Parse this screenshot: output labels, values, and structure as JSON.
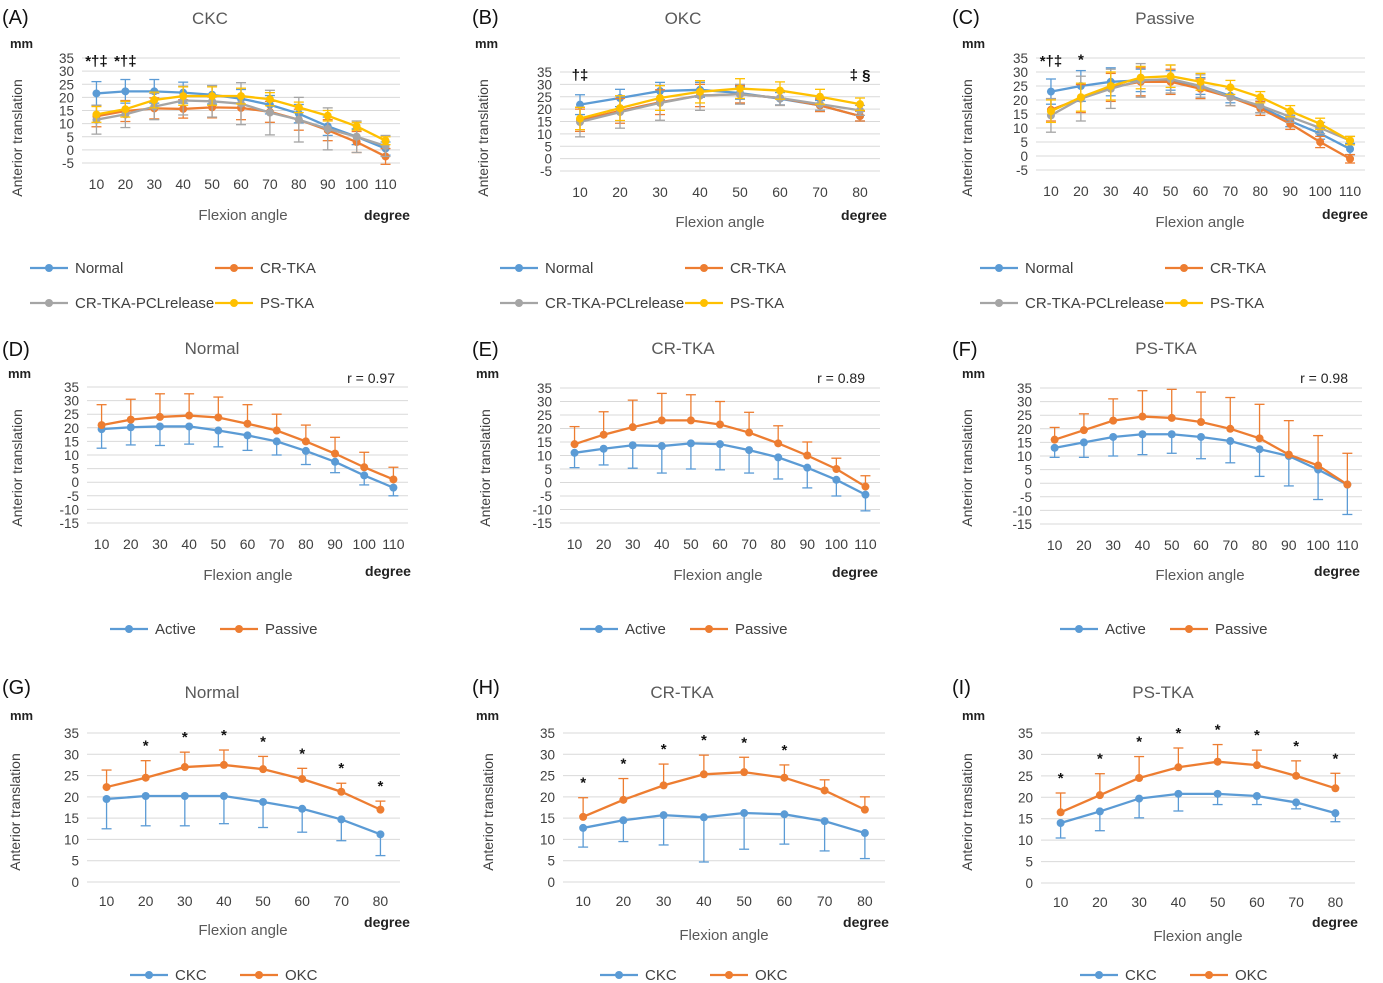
{
  "figure": {
    "series_colors": {
      "Normal": "#5B9BD5",
      "CR-TKA": "#ED7D31",
      "CR-TKA-PCLrelease": "#A5A5A5",
      "PS-TKA": "#FFC000",
      "Active": "#5B9BD5",
      "Passive": "#ED7D31",
      "CKC": "#5B9BD5",
      "OKC": "#ED7D31"
    },
    "gridline_color": "#D9D9D9"
  },
  "chart_data": [
    {
      "panel": "(A)",
      "title": "CKC",
      "type": "line",
      "ylabel": "Anterior translation",
      "yunit": "mm",
      "xlabel": "Flexion angle",
      "xunit": "degree",
      "x": [
        10,
        20,
        30,
        40,
        50,
        60,
        70,
        80,
        90,
        100,
        110
      ],
      "ylim": [
        -5,
        35
      ],
      "yticks": [
        35,
        30,
        25,
        20,
        15,
        10,
        5,
        0,
        -5
      ],
      "grid": true,
      "legend": "bottom",
      "annotation": "",
      "series": [
        {
          "name": "Normal",
          "values": [
            21.5,
            22.3,
            22.3,
            21.8,
            21,
            19.5,
            17.2,
            13.8,
            9,
            5,
            0.5
          ],
          "err": [
            4.5,
            4.5,
            4.5,
            4,
            3.5,
            3.5,
            3.5,
            3.5,
            3.5,
            3,
            2.5
          ]
        },
        {
          "name": "CR-TKA",
          "values": [
            12.8,
            14.8,
            15.8,
            15.6,
            16.2,
            16,
            14.5,
            11.5,
            7.5,
            3,
            -2.5
          ],
          "err": [
            4,
            4,
            4,
            3.5,
            4,
            4.5,
            4,
            4,
            4,
            4,
            3
          ]
        },
        {
          "name": "CR-TKA-PCLrelease",
          "values": [
            11.5,
            13.5,
            16.5,
            18.8,
            18.5,
            17.6,
            14.2,
            11.5,
            8,
            5,
            1.5
          ],
          "err": [
            5.5,
            5,
            5,
            5.5,
            6,
            8,
            8.5,
            8.5,
            8,
            6,
            4
          ]
        },
        {
          "name": "PS-TKA",
          "values": [
            13.5,
            15.5,
            19,
            20.5,
            20.5,
            20.5,
            19.3,
            16.2,
            13,
            9,
            3.5
          ],
          "err": [
            3,
            3,
            3,
            3.5,
            3.5,
            3,
            2.5,
            2,
            2,
            1.5,
            1.5
          ]
        }
      ],
      "markers": [
        {
          "x": 10,
          "text": "*†‡"
        },
        {
          "x": 20,
          "text": "*†‡"
        }
      ],
      "legend_entries": [
        "Normal",
        "CR-TKA",
        "CR-TKA-PCLrelease",
        "PS-TKA"
      ]
    },
    {
      "panel": "(B)",
      "title": "OKC",
      "type": "line",
      "ylabel": "Anterior translation",
      "yunit": "mm",
      "xlabel": "Flexion angle",
      "xunit": "degree",
      "x": [
        10,
        20,
        30,
        40,
        50,
        60,
        70,
        80
      ],
      "ylim": [
        -5,
        35
      ],
      "yticks": [
        35,
        30,
        25,
        20,
        15,
        10,
        5,
        0,
        -5
      ],
      "grid": true,
      "legend": "bottom",
      "annotation": "",
      "series": [
        {
          "name": "Normal",
          "values": [
            21.8,
            24.5,
            27.3,
            27.8,
            26.5,
            24.2,
            21.5,
            17.2
          ],
          "err": [
            4,
            3.5,
            3.5,
            3,
            2.5,
            2.5,
            2,
            2
          ]
        },
        {
          "name": "CR-TKA",
          "values": [
            15.5,
            19.3,
            22.8,
            25.5,
            26,
            24.5,
            21.5,
            17.2
          ],
          "err": [
            4.5,
            5,
            5,
            4.5,
            3.5,
            3,
            2.5,
            2
          ]
        },
        {
          "name": "CR-TKA-PCLrelease",
          "values": [
            14.8,
            18.8,
            22.5,
            25.5,
            26,
            24.5,
            22,
            19.5
          ],
          "err": [
            6,
            6.5,
            7,
            6,
            4,
            3,
            2.5,
            2
          ]
        },
        {
          "name": "PS-TKA",
          "values": [
            16.2,
            20.4,
            24.5,
            27,
            28.3,
            27.5,
            25,
            22
          ],
          "err": [
            4.5,
            5,
            5,
            4.5,
            4,
            3.5,
            3,
            2.5
          ]
        }
      ],
      "markers": [
        {
          "x": 10,
          "text": "†‡"
        },
        {
          "x": 80,
          "text": "‡ §"
        }
      ],
      "legend_entries": [
        "Normal",
        "CR-TKA",
        "CR-TKA-PCLrelease",
        "PS-TKA"
      ]
    },
    {
      "panel": "(C)",
      "title": "Passive",
      "type": "line",
      "ylabel": "Anterior translation",
      "yunit": "mm",
      "xlabel": "Flexion angle",
      "xunit": "degree",
      "x": [
        10,
        20,
        30,
        40,
        50,
        60,
        70,
        80,
        90,
        100,
        110
      ],
      "ylim": [
        -5,
        35
      ],
      "yticks": [
        35,
        30,
        25,
        20,
        15,
        10,
        5,
        0,
        -5
      ],
      "grid": true,
      "legend": "bottom",
      "annotation": "",
      "series": [
        {
          "name": "Normal",
          "values": [
            23,
            25,
            26.5,
            27,
            27,
            25,
            21.5,
            17.5,
            12.5,
            8,
            2.5
          ],
          "err": [
            4.5,
            5.5,
            5,
            4,
            3.5,
            3,
            2.5,
            2,
            2,
            2,
            2
          ]
        },
        {
          "name": "CR-TKA",
          "values": [
            16.5,
            20.5,
            24.5,
            26.5,
            26.5,
            24,
            21,
            17,
            11.5,
            5,
            -1
          ],
          "err": [
            4,
            5,
            5,
            5,
            4.5,
            3.5,
            3,
            2.5,
            2,
            2,
            1.5
          ]
        },
        {
          "name": "CR-TKA-PCLrelease",
          "values": [
            14.5,
            20.5,
            24,
            27,
            27.5,
            25,
            21,
            18,
            14,
            10,
            5.5
          ],
          "err": [
            6,
            8,
            7,
            6,
            5,
            4,
            3,
            2.5,
            2,
            2,
            1.5
          ]
        },
        {
          "name": "PS-TKA",
          "values": [
            16,
            21,
            25,
            28,
            28.5,
            26.5,
            24.5,
            21,
            16,
            11.5,
            5.5
          ],
          "err": [
            4,
            5,
            5,
            4,
            4,
            3,
            2.5,
            2,
            2,
            2,
            1.5
          ]
        }
      ],
      "markers": [
        {
          "x": 10,
          "text": "*†‡"
        },
        {
          "x": 20,
          "text": "*"
        }
      ],
      "legend_entries": [
        "Normal",
        "CR-TKA",
        "CR-TKA-PCLrelease",
        "PS-TKA"
      ]
    },
    {
      "panel": "(D)",
      "title": "Normal",
      "type": "line",
      "ylabel": "Anterior translation",
      "yunit": "mm",
      "xlabel": "Flexion angle",
      "xunit": "degree",
      "x": [
        10,
        20,
        30,
        40,
        50,
        60,
        70,
        80,
        90,
        100,
        110
      ],
      "ylim": [
        -15,
        35
      ],
      "yticks": [
        35,
        30,
        25,
        20,
        15,
        10,
        5,
        0,
        -5,
        -10,
        -15
      ],
      "grid": true,
      "legend": "bottom",
      "annotation": "r = 0.97",
      "series": [
        {
          "name": "Active",
          "values": [
            19.5,
            20.2,
            20.5,
            20.5,
            19,
            17.2,
            15,
            11.5,
            7.5,
            2.5,
            -2
          ],
          "err": [
            7,
            6.5,
            7,
            6.5,
            6,
            5.5,
            5,
            5,
            4,
            3.5,
            3
          ]
        },
        {
          "name": "Passive",
          "values": [
            21,
            23,
            24,
            24.5,
            23.8,
            21.5,
            19,
            15,
            10.5,
            5.5,
            1
          ],
          "err": [
            7.5,
            7.5,
            8.5,
            8,
            7.5,
            7,
            6,
            6,
            6,
            5.5,
            4.5
          ]
        }
      ],
      "markers": [],
      "legend_entries": [
        "Active",
        "Passive"
      ]
    },
    {
      "panel": "(E)",
      "title": "CR-TKA",
      "type": "line",
      "ylabel": "Anterior translation",
      "yunit": "mm",
      "xlabel": "Flexion angle",
      "xunit": "degree",
      "x": [
        10,
        20,
        30,
        40,
        50,
        60,
        70,
        80,
        90,
        100,
        110
      ],
      "ylim": [
        -15,
        35
      ],
      "yticks": [
        35,
        30,
        25,
        20,
        15,
        10,
        5,
        0,
        -5,
        -10,
        -15
      ],
      "grid": true,
      "legend": "bottom",
      "annotation": "r = 0.89",
      "series": [
        {
          "name": "Active",
          "values": [
            11,
            12.5,
            13.8,
            13.5,
            14.5,
            14.2,
            12,
            9.3,
            5.5,
            1,
            -4.5
          ],
          "err": [
            5.5,
            6,
            8.5,
            10,
            9.5,
            9.5,
            8.5,
            8,
            7.5,
            6,
            6
          ]
        },
        {
          "name": "Passive",
          "values": [
            14.2,
            17.7,
            20.5,
            23,
            23,
            21.5,
            18.5,
            14.5,
            10,
            5,
            -1.5
          ],
          "err": [
            6.5,
            8.5,
            10,
            10,
            9.5,
            8.5,
            7.5,
            6.5,
            5,
            4,
            4
          ]
        }
      ],
      "markers": [],
      "legend_entries": [
        "Active",
        "Passive"
      ]
    },
    {
      "panel": "(F)",
      "title": "PS-TKA",
      "type": "line",
      "ylabel": "Anterior translation",
      "yunit": "mm",
      "xlabel": "Flexion angle",
      "xunit": "degree",
      "x": [
        10,
        20,
        30,
        40,
        50,
        60,
        70,
        80,
        90,
        100,
        110
      ],
      "ylim": [
        -15,
        35
      ],
      "yticks": [
        35,
        30,
        25,
        20,
        15,
        10,
        5,
        0,
        -5,
        -10,
        -15
      ],
      "grid": true,
      "legend": "bottom",
      "annotation": "r = 0.98",
      "series": [
        {
          "name": "Active",
          "values": [
            13,
            15,
            17,
            18,
            18,
            17,
            15.5,
            12.5,
            10,
            5,
            -0.5
          ],
          "err": [
            3.5,
            5.5,
            7,
            7.5,
            7,
            8,
            8,
            10,
            11,
            11,
            11
          ]
        },
        {
          "name": "Passive",
          "values": [
            16,
            19.5,
            23,
            24.5,
            24,
            22.5,
            20,
            16.5,
            10.5,
            6.5,
            -0.5
          ],
          "err": [
            4.5,
            6,
            8,
            9.5,
            10.5,
            11,
            11.5,
            12.5,
            12.5,
            11,
            11.5
          ]
        }
      ],
      "markers": [],
      "legend_entries": [
        "Active",
        "Passive"
      ]
    },
    {
      "panel": "(G)",
      "title": "Normal",
      "type": "line",
      "ylabel": "Anterior translation",
      "yunit": "mm",
      "xlabel": "Flexion angle",
      "xunit": "degree",
      "x": [
        10,
        20,
        30,
        40,
        50,
        60,
        70,
        80
      ],
      "ylim": [
        0,
        35
      ],
      "yticks": [
        35,
        30,
        25,
        20,
        15,
        10,
        5,
        0
      ],
      "grid": true,
      "legend": "bottom",
      "annotation": "",
      "series": [
        {
          "name": "CKC",
          "values": [
            19.5,
            20.2,
            20.2,
            20.2,
            18.8,
            17.2,
            14.7,
            11.2
          ],
          "err": [
            7,
            7,
            7,
            6.5,
            6,
            5.5,
            5,
            5
          ]
        },
        {
          "name": "OKC",
          "values": [
            22.3,
            24.5,
            27,
            27.5,
            26.5,
            24.2,
            21.2,
            17
          ],
          "err": [
            4,
            4,
            3.5,
            3.5,
            3,
            2.5,
            2,
            2
          ]
        }
      ],
      "markers": [
        {
          "x": 20,
          "text": "*"
        },
        {
          "x": 30,
          "text": "*"
        },
        {
          "x": 40,
          "text": "*"
        },
        {
          "x": 50,
          "text": "*"
        },
        {
          "x": 60,
          "text": "*"
        },
        {
          "x": 70,
          "text": "*"
        },
        {
          "x": 80,
          "text": "*"
        }
      ],
      "legend_entries": [
        "CKC",
        "OKC"
      ]
    },
    {
      "panel": "(H)",
      "title": "CR-TKA",
      "type": "line",
      "ylabel": "Anterior translation",
      "yunit": "mm",
      "xlabel": "Flexion angle",
      "xunit": "degree",
      "x": [
        10,
        20,
        30,
        40,
        50,
        60,
        70,
        80
      ],
      "ylim": [
        0,
        35
      ],
      "yticks": [
        35,
        30,
        25,
        20,
        15,
        10,
        5,
        0
      ],
      "grid": true,
      "legend": "bottom",
      "annotation": "",
      "series": [
        {
          "name": "CKC",
          "values": [
            12.7,
            14.5,
            15.7,
            15.2,
            16.2,
            15.9,
            14.3,
            11.5
          ],
          "err": [
            4.5,
            5,
            7,
            10.5,
            8.5,
            7,
            7,
            6
          ]
        },
        {
          "name": "OKC",
          "values": [
            15.3,
            19.3,
            22.7,
            25.3,
            25.8,
            24.5,
            21.5,
            17
          ],
          "err": [
            4.5,
            5,
            5,
            4.5,
            3.5,
            3,
            2.5,
            3
          ]
        }
      ],
      "markers": [
        {
          "x": 10,
          "text": "*"
        },
        {
          "x": 20,
          "text": "*"
        },
        {
          "x": 30,
          "text": "*"
        },
        {
          "x": 40,
          "text": "*"
        },
        {
          "x": 50,
          "text": "*"
        },
        {
          "x": 60,
          "text": "*"
        }
      ],
      "legend_entries": [
        "CKC",
        "OKC"
      ]
    },
    {
      "panel": "(I)",
      "title": "PS-TKA",
      "type": "line",
      "ylabel": "Anterior translation",
      "yunit": "mm",
      "xlabel": "Flexion angle",
      "xunit": "degree",
      "x": [
        10,
        20,
        30,
        40,
        50,
        60,
        70,
        80
      ],
      "ylim": [
        0,
        35
      ],
      "yticks": [
        35,
        30,
        25,
        20,
        15,
        10,
        5,
        0
      ],
      "grid": true,
      "legend": "bottom",
      "annotation": "",
      "series": [
        {
          "name": "CKC",
          "values": [
            14,
            16.7,
            19.7,
            20.8,
            20.8,
            20.3,
            18.8,
            16.3
          ],
          "err": [
            3.5,
            4.5,
            4.5,
            4,
            2.5,
            2,
            1.5,
            2
          ]
        },
        {
          "name": "OKC",
          "values": [
            16.5,
            20.5,
            24.5,
            27,
            28.3,
            27.5,
            25,
            22.1
          ],
          "err": [
            4.5,
            5,
            5,
            4.5,
            4,
            3.5,
            3.5,
            3.5
          ]
        }
      ],
      "markers": [
        {
          "x": 10,
          "text": "*"
        },
        {
          "x": 20,
          "text": "*"
        },
        {
          "x": 30,
          "text": "*"
        },
        {
          "x": 40,
          "text": "*"
        },
        {
          "x": 50,
          "text": "*"
        },
        {
          "x": 60,
          "text": "*"
        },
        {
          "x": 70,
          "text": "*"
        },
        {
          "x": 80,
          "text": "*"
        }
      ],
      "legend_entries": [
        "CKC",
        "OKC"
      ]
    }
  ]
}
